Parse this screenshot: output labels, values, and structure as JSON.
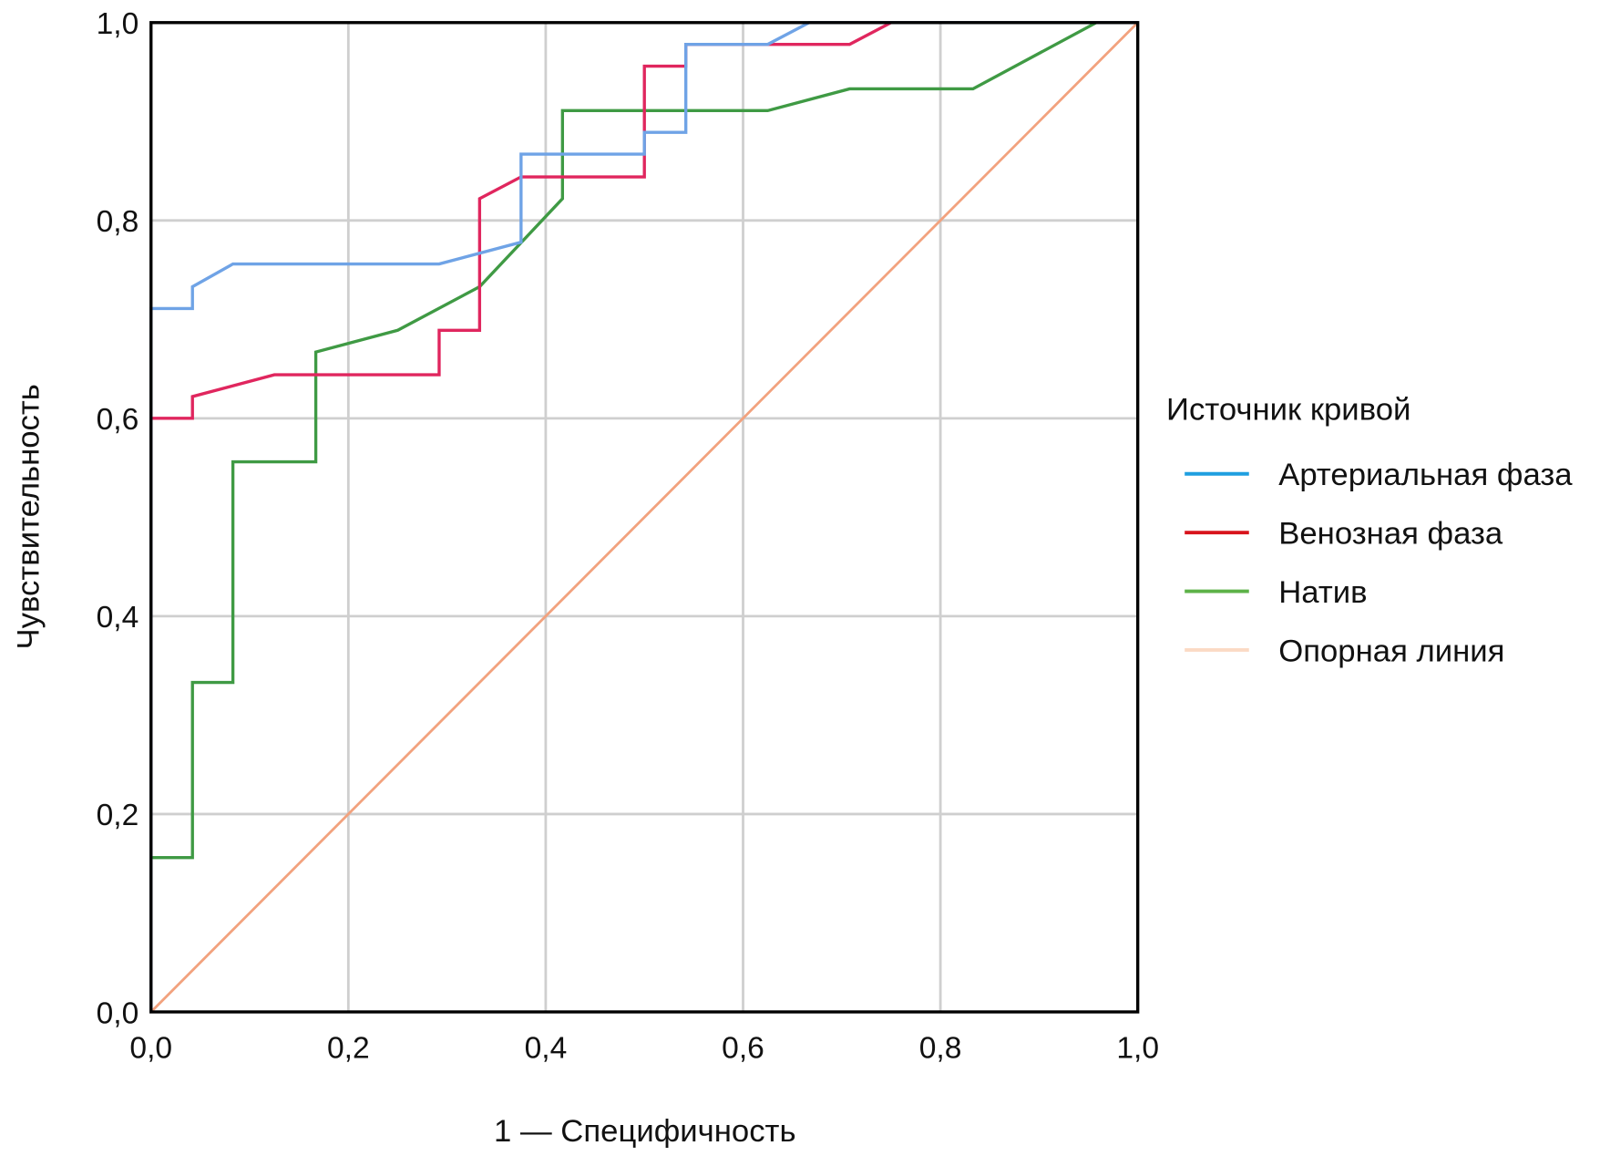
{
  "chart_data": {
    "type": "line",
    "title": "",
    "xlabel": "1 — Специфичность",
    "ylabel": "Чувствительность",
    "xlim": [
      0,
      1
    ],
    "ylim": [
      0,
      1
    ],
    "grid": true,
    "xticks": [
      "0,0",
      "0,2",
      "0,4",
      "0,6",
      "0,8",
      "1,0"
    ],
    "yticks": [
      "0,0",
      "0,2",
      "0,4",
      "0,6",
      "0,8",
      "1,0"
    ],
    "legend": {
      "title": "Источник кривой",
      "placement": "right"
    },
    "series": [
      {
        "name": "Артериальная фаза",
        "color": "#6fa3e6",
        "legend_color": "#1f9fe0",
        "points": [
          [
            0,
            0
          ],
          [
            0,
            0.711
          ],
          [
            0.042,
            0.711
          ],
          [
            0.042,
            0.733
          ],
          [
            0.083,
            0.756
          ],
          [
            0.292,
            0.756
          ],
          [
            0.375,
            0.778
          ],
          [
            0.375,
            0.867
          ],
          [
            0.5,
            0.867
          ],
          [
            0.5,
            0.889
          ],
          [
            0.542,
            0.889
          ],
          [
            0.542,
            0.978
          ],
          [
            0.625,
            0.978
          ],
          [
            0.667,
            1
          ],
          [
            1,
            1
          ]
        ]
      },
      {
        "name": "Венозная фаза",
        "color": "#e0265e",
        "legend_color": "#d8141c",
        "points": [
          [
            0,
            0
          ],
          [
            0,
            0.6
          ],
          [
            0.042,
            0.6
          ],
          [
            0.042,
            0.622
          ],
          [
            0.125,
            0.644
          ],
          [
            0.292,
            0.644
          ],
          [
            0.292,
            0.689
          ],
          [
            0.333,
            0.689
          ],
          [
            0.333,
            0.822
          ],
          [
            0.375,
            0.844
          ],
          [
            0.5,
            0.844
          ],
          [
            0.5,
            0.956
          ],
          [
            0.542,
            0.956
          ],
          [
            0.542,
            0.978
          ],
          [
            0.708,
            0.978
          ],
          [
            0.75,
            1
          ],
          [
            1,
            1
          ]
        ]
      },
      {
        "name": "Натив",
        "color": "#3f9a44",
        "legend_color": "#5db248",
        "points": [
          [
            0,
            0
          ],
          [
            0,
            0.156
          ],
          [
            0.042,
            0.156
          ],
          [
            0.042,
            0.333
          ],
          [
            0.083,
            0.333
          ],
          [
            0.083,
            0.556
          ],
          [
            0.167,
            0.556
          ],
          [
            0.167,
            0.667
          ],
          [
            0.25,
            0.689
          ],
          [
            0.333,
            0.733
          ],
          [
            0.417,
            0.822
          ],
          [
            0.417,
            0.911
          ],
          [
            0.625,
            0.911
          ],
          [
            0.708,
            0.933
          ],
          [
            0.833,
            0.933
          ],
          [
            0.958,
            1
          ],
          [
            1,
            1
          ]
        ]
      },
      {
        "name": "Опорная линия",
        "color": "#f2a27e",
        "legend_color": "#fbdac4",
        "points": [
          [
            0,
            0
          ],
          [
            1,
            1
          ]
        ]
      }
    ]
  }
}
